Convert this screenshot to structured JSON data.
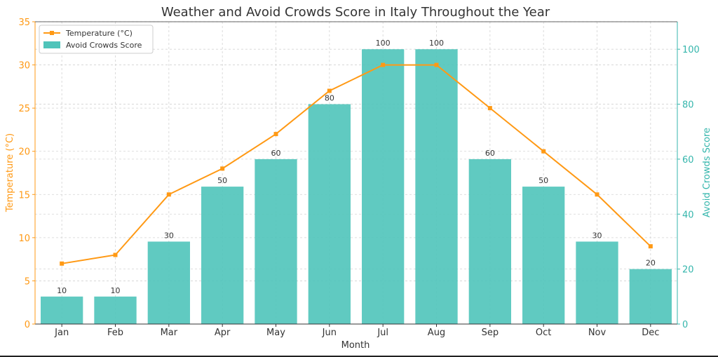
{
  "chart_data": {
    "type": "bar+line",
    "title": "Weather and Avoid Crowds Score in Italy Throughout the Year",
    "xlabel": "Month",
    "categories": [
      "Jan",
      "Feb",
      "Mar",
      "Apr",
      "May",
      "Jun",
      "Jul",
      "Aug",
      "Sep",
      "Oct",
      "Nov",
      "Dec"
    ],
    "y_left": {
      "label": "Temperature (°C)",
      "ylim": [
        0,
        35
      ],
      "ticks": [
        0,
        5,
        10,
        15,
        20,
        25,
        30,
        35
      ],
      "color": "#ff9914"
    },
    "y_right": {
      "label": "Avoid Crowds Score",
      "ylim": [
        0,
        110
      ],
      "ticks": [
        0,
        20,
        40,
        60,
        80,
        100
      ],
      "color": "#35b6ac"
    },
    "series": [
      {
        "name": "Temperature (°C)",
        "type": "line",
        "axis": "left",
        "color": "#ff9914",
        "values": [
          7,
          8,
          15,
          18,
          22,
          27,
          30,
          30,
          25,
          20,
          15,
          9
        ]
      },
      {
        "name": "Avoid Crowds Score",
        "type": "bar",
        "axis": "right",
        "color": "#4fc4ba",
        "values": [
          10,
          10,
          30,
          50,
          60,
          80,
          100,
          100,
          60,
          50,
          30,
          20
        ]
      }
    ],
    "grid": true,
    "legend_position": "top-left"
  }
}
